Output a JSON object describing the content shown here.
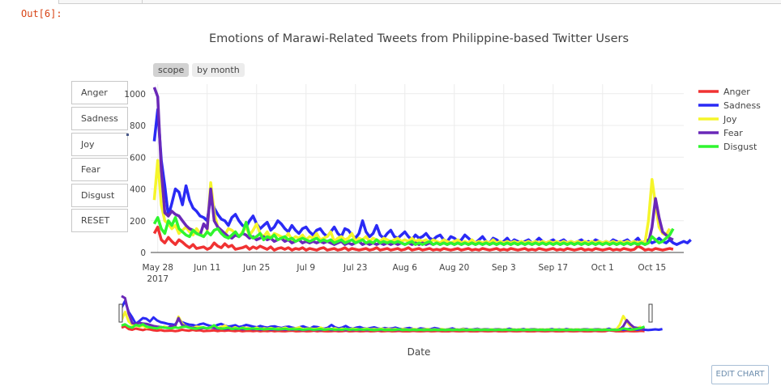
{
  "notebook": {
    "out_prompt": "Out[6]:"
  },
  "toggles": {
    "scope": "scope",
    "by_month": "by month"
  },
  "side_buttons": [
    "Anger",
    "Sadness",
    "Joy",
    "Fear",
    "Disgust",
    "RESET"
  ],
  "edit_chart_label": "EDIT CHART",
  "colors": {
    "Anger": "#f03232",
    "Sadness": "#2a2af5",
    "Joy": "#f5f52a",
    "Fear": "#6a28b8",
    "Disgust": "#2ff52f",
    "grid": "#ececec",
    "axis": "#444444"
  },
  "chart_data": {
    "type": "line",
    "title": "Emotions of Marawi-Related Tweets from Philippine-based Twitter Users",
    "xlabel": "Date",
    "ylabel": "",
    "x_start": "2017-05-27",
    "x_end": "2017-10-22",
    "xlim": [
      "2017-05-26",
      "2017-10-24"
    ],
    "ylim": [
      0,
      1060
    ],
    "y_ticks": [
      0,
      200,
      400,
      600,
      800,
      1000
    ],
    "x_ticks": [
      {
        "date": "2017-05-28",
        "label": "May 28",
        "sublabel": "2017"
      },
      {
        "date": "2017-06-11",
        "label": "Jun 11"
      },
      {
        "date": "2017-06-25",
        "label": "Jun 25"
      },
      {
        "date": "2017-07-09",
        "label": "Jul 9"
      },
      {
        "date": "2017-07-23",
        "label": "Jul 23"
      },
      {
        "date": "2017-08-06",
        "label": "Aug 6"
      },
      {
        "date": "2017-08-20",
        "label": "Aug 20"
      },
      {
        "date": "2017-09-03",
        "label": "Sep 3"
      },
      {
        "date": "2017-09-17",
        "label": "Sep 17"
      },
      {
        "date": "2017-10-01",
        "label": "Oct 1"
      },
      {
        "date": "2017-10-15",
        "label": "Oct 15"
      }
    ],
    "legend_position": "right",
    "grid": true,
    "range_slider": true,
    "series": [
      {
        "name": "Anger",
        "values": [
          120,
          160,
          80,
          60,
          95,
          70,
          50,
          80,
          65,
          45,
          30,
          50,
          25,
          30,
          35,
          20,
          30,
          60,
          40,
          30,
          55,
          35,
          45,
          20,
          25,
          30,
          40,
          20,
          35,
          25,
          40,
          30,
          20,
          35,
          15,
          25,
          30,
          20,
          30,
          15,
          25,
          20,
          30,
          15,
          25,
          20,
          15,
          25,
          30,
          15,
          20,
          25,
          15,
          20,
          30,
          15,
          25,
          20,
          15,
          20,
          25,
          15,
          20,
          30,
          15,
          20,
          25,
          15,
          20,
          25,
          15,
          20,
          30,
          15,
          20,
          25,
          15,
          20,
          25,
          15,
          20,
          15,
          25,
          20,
          15,
          20,
          25,
          15,
          20,
          25,
          15,
          20,
          15,
          25,
          20,
          15,
          20,
          25,
          15,
          20,
          15,
          25,
          20,
          15,
          20,
          25,
          15,
          20,
          15,
          25,
          20,
          15,
          20,
          25,
          15,
          20,
          15,
          25,
          20,
          15,
          20,
          25,
          15,
          20,
          15,
          25,
          20,
          15,
          20,
          25,
          15,
          20,
          15,
          25,
          20,
          15,
          20,
          40,
          30,
          15,
          20,
          15,
          25,
          20,
          15,
          20,
          25,
          20
        ]
      },
      {
        "name": "Sadness",
        "values": [
          700,
          900,
          580,
          420,
          230,
          310,
          400,
          380,
          300,
          420,
          330,
          280,
          260,
          230,
          220,
          200,
          350,
          280,
          240,
          210,
          200,
          170,
          220,
          240,
          200,
          170,
          160,
          200,
          230,
          180,
          150,
          170,
          190,
          140,
          160,
          200,
          180,
          150,
          130,
          170,
          140,
          120,
          150,
          160,
          130,
          110,
          140,
          150,
          120,
          100,
          130,
          160,
          120,
          100,
          150,
          140,
          110,
          90,
          120,
          200,
          130,
          100,
          120,
          170,
          110,
          90,
          120,
          140,
          100,
          90,
          110,
          130,
          100,
          80,
          110,
          90,
          100,
          120,
          90,
          80,
          100,
          110,
          80,
          70,
          100,
          90,
          70,
          80,
          110,
          90,
          70,
          60,
          80,
          100,
          70,
          60,
          90,
          80,
          60,
          70,
          90,
          60,
          80,
          70,
          60,
          70,
          80,
          60,
          70,
          90,
          70,
          60,
          70,
          80,
          60,
          70,
          80,
          60,
          70,
          60,
          70,
          80,
          60,
          70,
          60,
          80,
          70,
          60,
          70,
          60,
          80,
          70,
          60,
          70,
          80,
          60,
          70,
          90,
          60,
          70,
          80,
          60,
          70,
          90,
          70,
          60,
          80,
          60,
          50,
          60,
          70,
          60,
          80
        ]
      },
      {
        "name": "Joy",
        "values": [
          330,
          580,
          300,
          200,
          180,
          150,
          170,
          120,
          140,
          160,
          130,
          110,
          150,
          120,
          100,
          130,
          440,
          250,
          160,
          130,
          110,
          150,
          140,
          120,
          100,
          130,
          160,
          110,
          140,
          180,
          120,
          100,
          130,
          90,
          120,
          110,
          100,
          90,
          120,
          80,
          100,
          90,
          110,
          80,
          100,
          90,
          120,
          80,
          90,
          100,
          130,
          70,
          90,
          100,
          80,
          90,
          120,
          70,
          90,
          80,
          100,
          70,
          90,
          80,
          70,
          90,
          80,
          70,
          80,
          90,
          70,
          80,
          70,
          90,
          70,
          80,
          70,
          80,
          60,
          80,
          70,
          60,
          80,
          70,
          60,
          70,
          80,
          60,
          70,
          60,
          80,
          60,
          70,
          60,
          70,
          60,
          80,
          60,
          70,
          60,
          70,
          60,
          70,
          60,
          70,
          60,
          70,
          60,
          70,
          60,
          70,
          60,
          70,
          60,
          70,
          60,
          70,
          60,
          70,
          60,
          70,
          60,
          70,
          60,
          70,
          60,
          70,
          60,
          70,
          60,
          70,
          60,
          70,
          60,
          70,
          60,
          70,
          60,
          70,
          60,
          200,
          460,
          300,
          160,
          120,
          110,
          150
        ]
      },
      {
        "name": "Fear",
        "values": [
          1040,
          980,
          520,
          250,
          230,
          260,
          240,
          230,
          200,
          170,
          150,
          140,
          120,
          110,
          180,
          150,
          400,
          200,
          160,
          140,
          120,
          100,
          90,
          110,
          100,
          120,
          110,
          90,
          100,
          80,
          90,
          100,
          80,
          90,
          70,
          80,
          90,
          70,
          80,
          60,
          70,
          80,
          60,
          70,
          60,
          70,
          60,
          70,
          60,
          70,
          60,
          50,
          60,
          70,
          50,
          60,
          50,
          60,
          70,
          50,
          60,
          50,
          60,
          50,
          60,
          50,
          60,
          50,
          60,
          50,
          60,
          50,
          60,
          50,
          60,
          50,
          60,
          50,
          60,
          50,
          60,
          50,
          60,
          50,
          60,
          50,
          60,
          50,
          60,
          50,
          60,
          50,
          60,
          50,
          60,
          50,
          60,
          50,
          60,
          50,
          60,
          50,
          60,
          50,
          60,
          50,
          60,
          50,
          60,
          50,
          60,
          50,
          60,
          50,
          60,
          50,
          60,
          50,
          60,
          50,
          60,
          50,
          60,
          50,
          60,
          50,
          60,
          50,
          60,
          50,
          60,
          50,
          60,
          50,
          60,
          50,
          60,
          50,
          60,
          50,
          60,
          160,
          340,
          220,
          130,
          110,
          90,
          80
        ]
      },
      {
        "name": "Disgust",
        "values": [
          180,
          220,
          150,
          120,
          200,
          170,
          220,
          150,
          130,
          110,
          100,
          140,
          120,
          110,
          100,
          130,
          110,
          140,
          150,
          120,
          100,
          90,
          110,
          130,
          100,
          120,
          190,
          110,
          90,
          100,
          120,
          80,
          100,
          90,
          110,
          80,
          90,
          100,
          80,
          90,
          70,
          80,
          90,
          80,
          70,
          80,
          90,
          70,
          80,
          70,
          80,
          60,
          70,
          80,
          60,
          70,
          80,
          60,
          70,
          80,
          60,
          70,
          60,
          80,
          60,
          70,
          60,
          70,
          60,
          70,
          60,
          50,
          60,
          70,
          50,
          60,
          50,
          60,
          70,
          50,
          60,
          50,
          60,
          50,
          60,
          50,
          60,
          50,
          60,
          50,
          60,
          50,
          60,
          50,
          60,
          50,
          60,
          50,
          60,
          50,
          60,
          50,
          60,
          50,
          60,
          50,
          60,
          50,
          60,
          50,
          60,
          50,
          60,
          50,
          60,
          50,
          60,
          50,
          60,
          50,
          60,
          50,
          60,
          50,
          60,
          50,
          60,
          50,
          60,
          50,
          60,
          50,
          60,
          50,
          60,
          50,
          60,
          50,
          60,
          50,
          60,
          100,
          80,
          60,
          70,
          90,
          110,
          150
        ]
      }
    ]
  }
}
